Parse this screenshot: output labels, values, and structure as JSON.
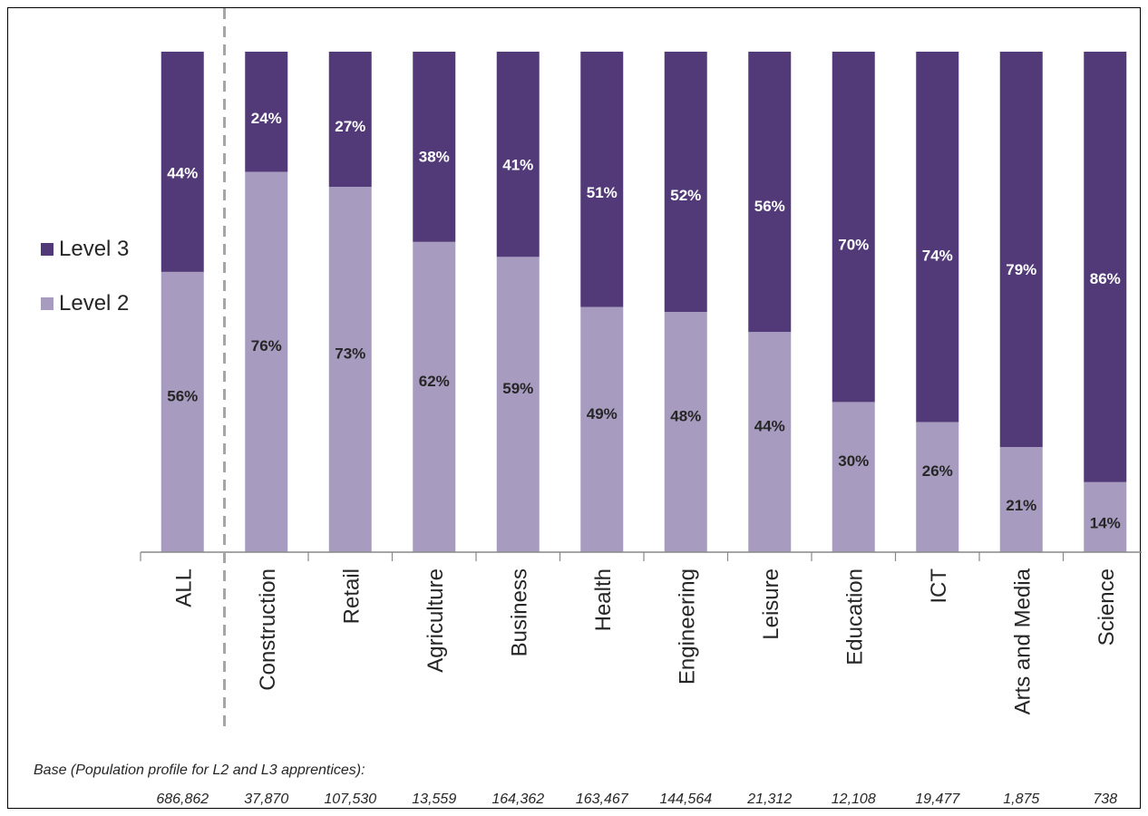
{
  "chart_data": {
    "type": "bar",
    "stacked": true,
    "percent": true,
    "categories": [
      "ALL",
      "Construction",
      "Retail",
      "Agriculture",
      "Business",
      "Health",
      "Engineering",
      "Leisure",
      "Education",
      "ICT",
      "Arts and Media",
      "Science"
    ],
    "series": [
      {
        "name": "Level 2",
        "color": "#a79cc0",
        "label_color": "#262626",
        "values": [
          56,
          76,
          73,
          62,
          59,
          49,
          48,
          44,
          30,
          26,
          21,
          14
        ]
      },
      {
        "name": "Level 3",
        "color": "#523a78",
        "label_color": "#ffffff",
        "values": [
          44,
          24,
          27,
          38,
          41,
          51,
          52,
          56,
          70,
          74,
          79,
          86
        ]
      }
    ],
    "value_labels": {
      "Level 2": [
        "56%",
        "76%",
        "73%",
        "62%",
        "59%",
        "49%",
        "48%",
        "44%",
        "30%",
        "26%",
        "21%",
        "14%"
      ],
      "Level 3": [
        "44%",
        "24%",
        "27%",
        "38%",
        "41%",
        "51%",
        "52%",
        "56%",
        "70%",
        "74%",
        "79%",
        "86%"
      ]
    },
    "ylim": [
      0,
      100
    ],
    "legend": {
      "position": "left",
      "entries": [
        "Level 3",
        "Level 2"
      ]
    },
    "separator_after_category": "ALL",
    "grid": false
  },
  "base": {
    "label": "Base (Population profile for L2 and L3 apprentices):",
    "values": [
      "686,862",
      "37,870",
      "107,530",
      "13,559",
      "164,362",
      "163,467",
      "144,564",
      "21,312",
      "12,108",
      "19,477",
      "1,875",
      "738"
    ]
  }
}
